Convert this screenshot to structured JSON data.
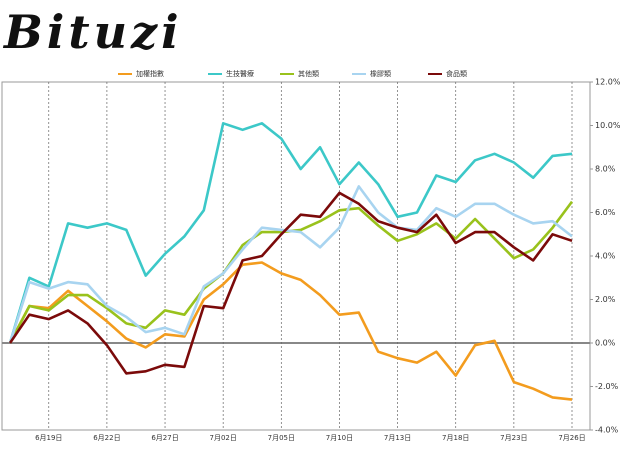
{
  "logo": "Bituzi",
  "chart_data": {
    "type": "line",
    "categories": [
      null,
      null,
      "6月19日",
      null,
      null,
      "6月22日",
      null,
      null,
      "6月27日",
      null,
      null,
      "7月02日",
      null,
      null,
      "7月05日",
      null,
      null,
      "7月10日",
      null,
      null,
      "7月13日",
      null,
      null,
      "7月18日",
      null,
      null,
      "7月23日",
      null,
      null,
      "7月26日"
    ],
    "series": [
      {
        "name": "加權指數",
        "color": "#f39c1e",
        "values": [
          0,
          1.7,
          1.6,
          2.4,
          1.7,
          1.0,
          0.2,
          -0.2,
          0.4,
          0.3,
          2.0,
          2.7,
          3.6,
          3.7,
          3.2,
          2.9,
          2.2,
          1.3,
          1.4,
          -0.4,
          -0.7,
          -0.9,
          -0.4,
          -1.5,
          -0.1,
          0.1,
          -1.8,
          -2.1,
          -2.5,
          -2.6
        ]
      },
      {
        "name": "生技醫療",
        "color": "#3cc8c8",
        "values": [
          0,
          3.0,
          2.6,
          5.5,
          5.3,
          5.5,
          5.2,
          3.1,
          4.1,
          4.9,
          6.1,
          10.1,
          9.8,
          10.1,
          9.4,
          8.0,
          9.0,
          7.3,
          8.3,
          7.3,
          5.8,
          6.0,
          7.7,
          7.4,
          8.4,
          8.7,
          8.3,
          7.6,
          8.6,
          8.7
        ]
      },
      {
        "name": "其他類",
        "color": "#99c21c",
        "values": [
          0,
          1.7,
          1.5,
          2.2,
          2.2,
          1.6,
          0.9,
          0.7,
          1.5,
          1.3,
          2.5,
          3.2,
          4.5,
          5.1,
          5.1,
          5.2,
          5.6,
          6.1,
          6.2,
          5.4,
          4.7,
          5.0,
          5.5,
          4.8,
          5.7,
          4.8,
          3.9,
          4.3,
          5.3,
          6.5
        ]
      },
      {
        "name": "橡膠類",
        "color": "#a8d4f0",
        "values": [
          0,
          2.8,
          2.5,
          2.8,
          2.7,
          1.7,
          1.2,
          0.5,
          0.7,
          0.4,
          2.6,
          3.2,
          4.3,
          5.3,
          5.2,
          5.1,
          4.4,
          5.3,
          7.2,
          6.0,
          5.3,
          5.2,
          6.2,
          5.8,
          6.4,
          6.4,
          5.9,
          5.5,
          5.6,
          4.9
        ]
      },
      {
        "name": "食品類",
        "color": "#7b0a0a",
        "values": [
          0,
          1.3,
          1.1,
          1.5,
          0.9,
          -0.1,
          -1.4,
          -1.3,
          -1.0,
          -1.1,
          1.7,
          1.6,
          3.8,
          4.0,
          5.0,
          5.9,
          5.8,
          6.9,
          6.4,
          5.6,
          5.3,
          5.1,
          5.9,
          4.6,
          5.1,
          5.1,
          4.4,
          3.8,
          5.0,
          4.7
        ]
      }
    ],
    "ylim": [
      -4,
      12
    ],
    "yticks": [
      {
        "value": -4,
        "label": "-4.0%"
      },
      {
        "value": -2,
        "label": "-2.0%"
      },
      {
        "value": 0,
        "label": "0.0%"
      },
      {
        "value": 2,
        "label": "2.0%"
      },
      {
        "value": 4,
        "label": "4.0%"
      },
      {
        "value": 6,
        "label": "6.0%"
      },
      {
        "value": 8,
        "label": "8.0%"
      },
      {
        "value": 10,
        "label": "10.0%"
      },
      {
        "value": 12,
        "label": "12.0%"
      }
    ],
    "legend": "top"
  }
}
